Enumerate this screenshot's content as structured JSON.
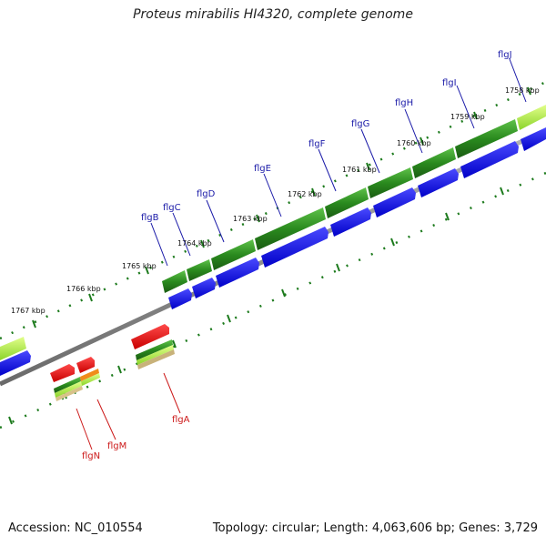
{
  "title": "Proteus mirabilis HI4320, complete genome",
  "footer": {
    "accession": "Accession: NC_010554",
    "summary": "Topology: circular; Length: 4,063,606 bp; Genes: 3,729"
  },
  "ticks": [
    "1767 kbp",
    "1766 kbp",
    "1765 kbp",
    "1764 kbp",
    "1763 kbp",
    "1762 kbp",
    "1761 kbp",
    "1760 kbp",
    "1759 kbp",
    "1758 kbp"
  ],
  "forward_genes": [
    "flgB",
    "flgC",
    "flgD",
    "flgE",
    "flgF",
    "flgG",
    "flgH",
    "flgI",
    "flgJ"
  ],
  "reverse_genes": [
    "flgN",
    "flgM",
    "flgA"
  ],
  "colors": {
    "forward_gene_label": "#1a1aa8",
    "reverse_gene_label": "#cc1a1a",
    "cds_forward": "#0000ee",
    "cds_reverse": "#ee0000",
    "feature_green": "#2a8a1e",
    "feature_lime": "#a6ef3a",
    "backbone": "#808080",
    "tick_dots": "#1c7a1c"
  }
}
